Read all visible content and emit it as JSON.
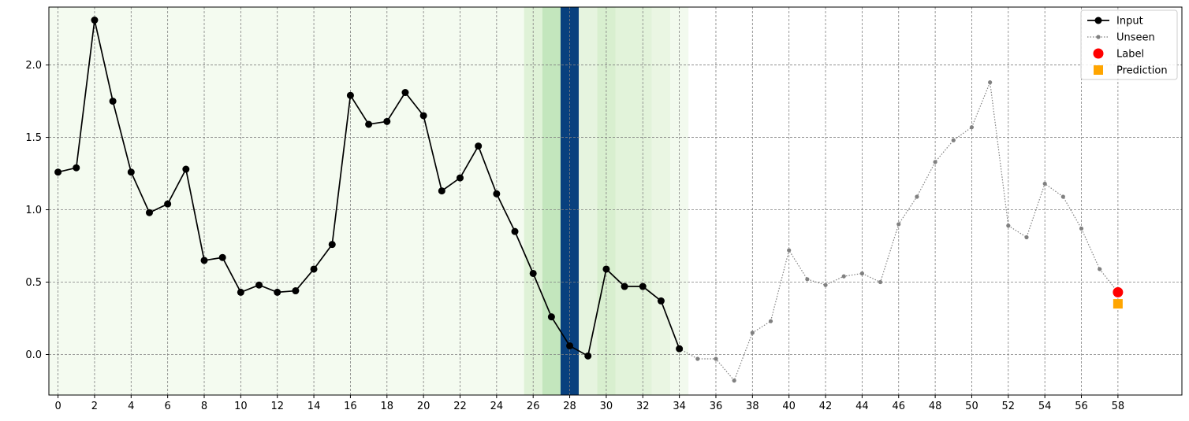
{
  "chart_data": {
    "type": "line",
    "x_ticks": [
      0,
      2,
      4,
      6,
      8,
      10,
      12,
      14,
      16,
      18,
      20,
      22,
      24,
      26,
      28,
      30,
      32,
      34,
      36,
      38,
      40,
      42,
      44,
      46,
      48,
      50,
      52,
      54,
      56,
      58
    ],
    "y_ticks": [
      0.0,
      0.5,
      1.0,
      1.5,
      2.0
    ],
    "y_tick_labels": [
      "0.0",
      "0.5",
      "1.0",
      "1.5",
      "2.0"
    ],
    "xlim": [
      -0.5,
      61.5
    ],
    "ylim": [
      -0.28,
      2.4
    ],
    "grid": true,
    "legend_position": "top-right",
    "series": [
      {
        "name": "Input",
        "color": "#000000",
        "style": "solid line with circle markers",
        "x": [
          0,
          1,
          2,
          3,
          4,
          5,
          6,
          7,
          8,
          9,
          10,
          11,
          12,
          13,
          14,
          15,
          16,
          17,
          18,
          19,
          20,
          21,
          22,
          23,
          24,
          25,
          26,
          27,
          28,
          29,
          30,
          31,
          32,
          33,
          34
        ],
        "values": [
          1.26,
          1.29,
          2.31,
          1.75,
          1.26,
          0.98,
          1.04,
          1.28,
          0.65,
          0.67,
          0.43,
          0.48,
          0.43,
          0.44,
          0.59,
          0.76,
          1.79,
          1.59,
          1.61,
          1.81,
          1.65,
          1.13,
          1.22,
          1.44,
          1.11,
          0.85,
          0.56,
          0.26,
          0.06,
          -0.01,
          0.59,
          0.47,
          0.47,
          0.37,
          0.04
        ]
      },
      {
        "name": "Unseen",
        "color": "#808080",
        "style": "dotted line with small markers",
        "x": [
          34,
          35,
          36,
          37,
          38,
          39,
          40,
          41,
          42,
          43,
          44,
          45,
          46,
          47,
          48,
          49,
          50,
          51,
          52,
          53,
          54,
          55,
          56,
          57,
          58
        ],
        "values": [
          0.04,
          -0.03,
          -0.03,
          -0.18,
          0.15,
          0.23,
          0.72,
          0.52,
          0.48,
          0.54,
          0.56,
          0.5,
          0.9,
          1.09,
          1.33,
          1.48,
          1.57,
          1.88,
          0.89,
          0.81,
          1.18,
          1.09,
          0.87,
          0.59,
          0.43
        ]
      },
      {
        "name": "Label",
        "color": "#ff0000",
        "style": "large circle",
        "x": [
          58
        ],
        "values": [
          0.43
        ]
      },
      {
        "name": "Prediction",
        "color": "#ffa500",
        "style": "square",
        "x": [
          58
        ],
        "values": [
          0.35
        ]
      }
    ],
    "highlight_bands": [
      {
        "x0": -0.5,
        "x1": 25.5,
        "color": "#f4fbf0"
      },
      {
        "x0": 25.5,
        "x1": 26.5,
        "color": "#dff2d7"
      },
      {
        "x0": 26.5,
        "x1": 27.5,
        "color": "#c3e6bd"
      },
      {
        "x0": 27.5,
        "x1": 28.5,
        "color": "#08407e"
      },
      {
        "x0": 28.5,
        "x1": 29.5,
        "color": "#e6f4df"
      },
      {
        "x0": 29.5,
        "x1": 30.5,
        "color": "#d8efcf"
      },
      {
        "x0": 30.5,
        "x1": 32.5,
        "color": "#e2f3da"
      },
      {
        "x0": 32.5,
        "x1": 33.5,
        "color": "#eaf6e3"
      },
      {
        "x0": 33.5,
        "x1": 34.5,
        "color": "#f2faee"
      }
    ]
  }
}
